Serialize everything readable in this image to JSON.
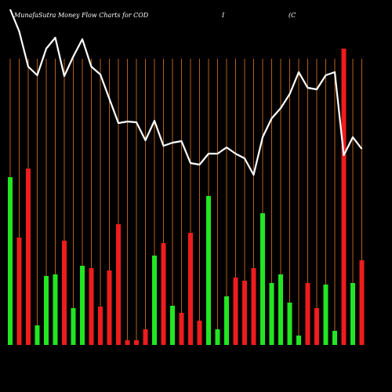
{
  "chart_data": {
    "type": "bar-line",
    "title": "MunafaSutra  Money Flow  Charts for COD",
    "title_part2": "I",
    "title_part3": "(C",
    "categories": [
      null,
      null,
      null,
      null,
      null,
      null,
      null,
      null,
      null,
      null,
      null,
      null,
      null,
      null,
      null,
      null,
      null,
      null,
      null,
      null,
      null,
      null,
      null,
      null,
      null,
      null,
      null,
      null,
      null,
      null,
      null,
      null,
      null,
      null,
      null,
      null,
      null,
      null,
      null,
      null
    ],
    "series": [
      {
        "values": [
          214,
          137,
          225,
          25,
          88,
          90,
          133,
          47,
          101,
          98,
          49,
          95,
          154,
          6,
          6,
          20,
          114,
          130,
          50,
          41,
          143,
          31,
          190,
          20,
          62,
          86,
          82,
          98,
          168,
          79,
          90,
          54,
          12,
          79,
          47,
          77,
          18,
          378,
          79,
          108
        ],
        "colors": [
          "#22e622",
          "#ee1c1c",
          "#ee1c1c",
          "#22e622",
          "#22e622",
          "#22e622",
          "#ee1c1c",
          "#22e622",
          "#22e622",
          "#ee1c1c",
          "#ee1c1c",
          "#ee1c1c",
          "#ee1c1c",
          "#ee1c1c",
          "#ee1c1c",
          "#ee1c1c",
          "#22e622",
          "#ee1c1c",
          "#22e622",
          "#ee1c1c",
          "#ee1c1c",
          "#ee1c1c",
          "#22e622",
          "#22e622",
          "#22e622",
          "#ee1c1c",
          "#ee1c1c",
          "#ee1c1c",
          "#22e622",
          "#22e622",
          "#22e622",
          "#22e622",
          "#22e622",
          "#ee1c1c",
          "#ee1c1c",
          "#22e622",
          "#22e622",
          "#ee1c1c",
          "#22e622",
          "#ee1c1c"
        ]
      },
      {
        "type": "line",
        "color": "#ffffff",
        "values": [
          428,
          400,
          355,
          344,
          378,
          392,
          343,
          368,
          390,
          355,
          345,
          314,
          283,
          285,
          284,
          261,
          286,
          254,
          258,
          260,
          232,
          230,
          244,
          244,
          252,
          244,
          238,
          217,
          265,
          289,
          302,
          320,
          348,
          328,
          326,
          344,
          348,
          242,
          265,
          250
        ]
      }
    ],
    "ylim": [
      0,
      440
    ],
    "separator_color": "#b5601a"
  }
}
